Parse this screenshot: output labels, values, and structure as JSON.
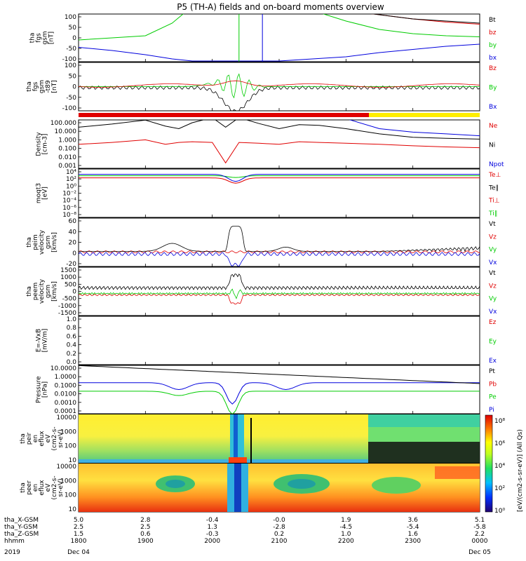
{
  "title": "P5 (TH-A) fields and on-board moments overview",
  "time_axis": {
    "ticks": [
      "1800",
      "1900",
      "2000",
      "2100",
      "2200",
      "2300",
      "0000"
    ],
    "date_labels": {
      "start": "Dec 04",
      "end": "Dec 05",
      "year": "2019"
    },
    "rows": [
      {
        "label": "tha_X-GSM",
        "values": [
          "5.0",
          "2.8",
          "-0.4",
          "-0.0",
          "1.9",
          "3.6",
          "5.1"
        ]
      },
      {
        "label": "tha_Y-GSM",
        "values": [
          "2.5",
          "2.5",
          "1.3",
          "-2.8",
          "-4.5",
          "-5.4",
          "-5.8"
        ]
      },
      {
        "label": "tha_Z-GSM",
        "values": [
          "1.5",
          "0.6",
          "-0.3",
          "0.2",
          "1.0",
          "1.6",
          "2.2"
        ]
      },
      {
        "label": "hhmm",
        "values": [
          "1800",
          "1900",
          "2000",
          "2100",
          "2200",
          "2300",
          "0000"
        ]
      }
    ]
  },
  "colorbar_label": "[eV/(cm2-s-sr-eV)] (All Qs)",
  "colorbar_ticks": [
    "10⁸",
    "10⁶",
    "10⁴",
    "10²",
    "10⁰"
  ],
  "panels": [
    {
      "id": "fgs-gsm",
      "ylabel": [
        "tha",
        "fgs",
        "gsm",
        "[nT]"
      ],
      "yticks": [
        "100",
        "50",
        "0",
        "-50",
        "-100"
      ],
      "legend": [
        {
          "text": "Bt",
          "color": "#000000"
        },
        {
          "text": "bz",
          "color": "#e00000"
        },
        {
          "text": "by",
          "color": "#00cc00"
        },
        {
          "text": "bx",
          "color": "#0000dd"
        }
      ]
    },
    {
      "id": "fgs-gsm-t89",
      "ylabel": [
        "tha",
        "fgs",
        "gsm",
        "-t89",
        "[nT]"
      ],
      "yticks": [
        "100",
        "50",
        "0",
        "-50",
        "-100"
      ],
      "legend": [
        {
          "text": "Bz",
          "color": "#e00000"
        },
        {
          "text": "By",
          "color": "#00cc00"
        },
        {
          "text": "Bx",
          "color": "#0000dd"
        }
      ]
    },
    {
      "id": "density",
      "ylabel": [
        "Density",
        "[cm-3]"
      ],
      "yticks": [
        "100.000",
        "10.000",
        "1.000",
        "0.100",
        "0.010",
        "0.001"
      ],
      "legend": [
        {
          "text": "Ne",
          "color": "#e00000"
        },
        {
          "text": "Ni",
          "color": "#000000"
        },
        {
          "text": "Npot",
          "color": "#0000dd"
        }
      ]
    },
    {
      "id": "temperature",
      "ylabel": [
        "moqt3",
        "[eV]"
      ],
      "yticks": [
        "10⁴",
        "10²",
        "10⁰",
        "10⁻²",
        "10⁻⁴",
        "10⁻⁶",
        "10⁻⁸"
      ],
      "legend": [
        {
          "text": "Te⊥",
          "color": "#e00000"
        },
        {
          "text": "Te∥",
          "color": "#000000"
        },
        {
          "text": "Ti⊥",
          "color": "#e00000"
        },
        {
          "text": "Ti∥",
          "color": "#00cc00"
        }
      ]
    },
    {
      "id": "peim-velocity",
      "ylabel": [
        "tha",
        "peim",
        "velocity",
        "gsm",
        "[km/s]"
      ],
      "yticks": [
        "60",
        "40",
        "20",
        "0",
        "-20"
      ],
      "legend": [
        {
          "text": "Vt",
          "color": "#000000"
        },
        {
          "text": "Vz",
          "color": "#e00000"
        },
        {
          "text": "Vy",
          "color": "#00cc00"
        },
        {
          "text": "Vx",
          "color": "#0000dd"
        }
      ]
    },
    {
      "id": "peem-velocity",
      "ylabel": [
        "tha",
        "peem",
        "velocity",
        "gsm",
        "[km/s]"
      ],
      "yticks": [
        "1500",
        "1000",
        "500",
        "0",
        "-500",
        "-1000",
        "-1500"
      ],
      "legend": [
        {
          "text": "Vt",
          "color": "#000000"
        },
        {
          "text": "Vz",
          "color": "#e00000"
        },
        {
          "text": "Vy",
          "color": "#00cc00"
        },
        {
          "text": "Vx",
          "color": "#0000dd"
        }
      ]
    },
    {
      "id": "efield",
      "ylabel": [
        "E=-VxB",
        "[mV/m]"
      ],
      "yticks": [
        "1.0",
        "0.8",
        "0.6",
        "0.4",
        "0.2",
        "0.0"
      ],
      "legend": [
        {
          "text": "Ez",
          "color": "#e00000"
        },
        {
          "text": "Ey",
          "color": "#00cc00"
        },
        {
          "text": "Ex",
          "color": "#0000dd"
        }
      ]
    },
    {
      "id": "pressure",
      "ylabel": [
        "Pressure",
        "[nPa]"
      ],
      "yticks": [
        "10.0000",
        "1.0000",
        "0.1000",
        "0.0100",
        "0.0010",
        "0.0001"
      ],
      "legend": [
        {
          "text": "Pt",
          "color": "#000000"
        },
        {
          "text": "Pb",
          "color": "#e00000"
        },
        {
          "text": "Pe",
          "color": "#00cc00"
        },
        {
          "text": "Pi",
          "color": "#0000dd"
        }
      ]
    },
    {
      "id": "peir-spec",
      "ylabel": [
        "tha",
        "peir",
        "en",
        "eflux",
        "eV",
        "(cm2-s-",
        "sr-eV)"
      ],
      "yticks": [
        "10000",
        "1000",
        "100",
        "10"
      ],
      "legend": []
    },
    {
      "id": "peer-spec",
      "ylabel": [
        "tha",
        "peer",
        "en",
        "eflux",
        "eV",
        "(cm2-s-",
        "sr-eV)"
      ],
      "yticks": [
        "10000",
        "1000",
        "100",
        "10"
      ],
      "legend": []
    }
  ],
  "chart_data": {
    "type": "line",
    "x_unit": "hhmm",
    "x_range": [
      "1800",
      "0000"
    ],
    "series_approx": {
      "fgs_gsm_nT": {
        "time_hr": [
          18.0,
          18.5,
          19.0,
          19.4,
          19.7,
          20.0,
          20.3,
          20.6,
          21.0,
          21.5,
          22.0,
          22.5,
          23.0,
          23.5,
          24.0
        ],
        "Bt": [
          400,
          400,
          400,
          400,
          400,
          400,
          400,
          400,
          260,
          170,
          130,
          110,
          90,
          80,
          70
        ],
        "bz": [
          400,
          400,
          400,
          400,
          400,
          400,
          400,
          400,
          260,
          170,
          130,
          110,
          90,
          75,
          65
        ],
        "by": [
          -10,
          0,
          10,
          70,
          150,
          400,
          400,
          400,
          200,
          130,
          80,
          40,
          20,
          10,
          5
        ],
        "bx": [
          -45,
          -60,
          -80,
          -100,
          -110,
          -110,
          -110,
          -110,
          -110,
          -100,
          -90,
          -70,
          -55,
          -40,
          -30
        ]
      },
      "density_cm3": {
        "time_hr": [
          18.0,
          18.5,
          19.0,
          19.3,
          19.5,
          19.7,
          20.0,
          20.2,
          20.4,
          20.7,
          21.0,
          21.3,
          21.6,
          22.0,
          22.5,
          23.0,
          23.5,
          24.0
        ],
        "Ni": [
          30,
          70,
          200,
          40,
          20,
          100,
          400,
          30,
          400,
          80,
          20,
          60,
          50,
          20,
          5,
          2,
          1.5,
          1.2
        ],
        "Ne": [
          0.3,
          0.5,
          1.0,
          0.3,
          0.5,
          0.6,
          0.5,
          0.002,
          0.5,
          0.4,
          0.3,
          0.6,
          0.5,
          0.4,
          0.3,
          0.2,
          0.15,
          0.12
        ],
        "Npot": [
          null,
          null,
          null,
          null,
          null,
          null,
          null,
          null,
          null,
          null,
          null,
          null,
          null,
          300,
          20,
          8,
          5,
          3
        ]
      }
    }
  }
}
